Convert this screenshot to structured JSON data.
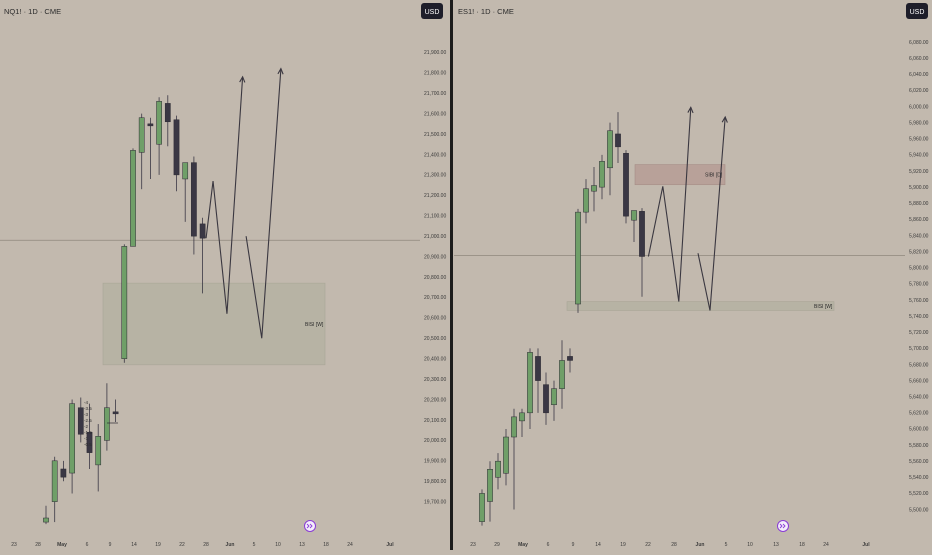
{
  "panels": [
    {
      "id": "nq",
      "title": "NQ1! · 1D · CME",
      "currency_label": "USD",
      "y_ticks": [
        "21,900.00",
        "21,800.00",
        "21,700.00",
        "21,600.00",
        "21,500.00",
        "21,400.00",
        "21,300.00",
        "21,200.00",
        "21,100.00",
        "21,000.00",
        "20,900.00",
        "20,800.00",
        "20,700.00",
        "20,600.00",
        "20,500.00",
        "20,400.00",
        "20,300.00",
        "20,200.00",
        "20,100.00",
        "20,000.00",
        "19,900.00",
        "19,800.00",
        "19,700.00"
      ],
      "x_ticks": [
        "23",
        "28",
        "May",
        "6",
        "9",
        "14",
        "19",
        "22",
        "28",
        "Jun",
        "5",
        "10",
        "13",
        "18",
        "24",
        "Jul"
      ],
      "zone_label": "BISI [W]",
      "inner_labels": [
        "-4",
        "-3.5",
        "-3",
        "-2.5",
        "-2",
        "-1.5",
        "-1",
        "-0.5"
      ]
    },
    {
      "id": "es",
      "title": "ES1! · 1D · CME",
      "currency_label": "USD",
      "y_ticks": [
        "6,080.00",
        "6,060.00",
        "6,040.00",
        "6,020.00",
        "6,000.00",
        "5,980.00",
        "5,960.00",
        "5,940.00",
        "5,920.00",
        "5,900.00",
        "5,880.00",
        "5,860.00",
        "5,840.00",
        "5,820.00",
        "5,800.00",
        "5,780.00",
        "5,760.00",
        "5,740.00",
        "5,720.00",
        "5,700.00",
        "5,680.00",
        "5,660.00",
        "5,640.00",
        "5,620.00",
        "5,600.00",
        "5,580.00",
        "5,560.00",
        "5,540.00",
        "5,520.00",
        "5,500.00"
      ],
      "x_ticks": [
        "23",
        "29",
        "May",
        "6",
        "9",
        "14",
        "19",
        "22",
        "28",
        "Jun",
        "5",
        "10",
        "13",
        "18",
        "24",
        "Jul"
      ],
      "zone_labels": [
        "SIBI [D]",
        "BISI [W]"
      ]
    }
  ],
  "colors": {
    "background": "#c2b9ae",
    "bull": "#6f9f68",
    "bear": "#3a3744",
    "wick": "#3a3744",
    "bisi_zone": "#b6b2a3",
    "sibi_zone": "#b79f98",
    "divider": "#1c1c1c",
    "badge": "#1e1e2a",
    "event_icon": "#8a3cd6"
  },
  "icons": [
    "event-icon"
  ],
  "chart_data": [
    {
      "type": "candlestick",
      "title": "NQ1! · 1D · CME",
      "currency": "USD",
      "ylim": [
        19620,
        21980
      ],
      "candles": [
        {
          "o": 19600,
          "h": 19680,
          "l": 19590,
          "c": 19620
        },
        {
          "o": 19700,
          "h": 19920,
          "l": 19600,
          "c": 19900
        },
        {
          "o": 19860,
          "h": 19900,
          "l": 19800,
          "c": 19820
        },
        {
          "o": 19840,
          "h": 20200,
          "l": 19740,
          "c": 20180
        },
        {
          "o": 20160,
          "h": 20210,
          "l": 19990,
          "c": 20030
        },
        {
          "o": 20040,
          "h": 20180,
          "l": 19860,
          "c": 19940
        },
        {
          "o": 19880,
          "h": 20080,
          "l": 19750,
          "c": 20020
        },
        {
          "o": 20000,
          "h": 20280,
          "l": 19950,
          "c": 20160
        },
        {
          "o": 20140,
          "h": 20200,
          "l": 20090,
          "c": 20130
        },
        {
          "o": 20400,
          "h": 20960,
          "l": 20380,
          "c": 20950
        },
        {
          "o": 20950,
          "h": 21430,
          "l": 20950,
          "c": 21420
        },
        {
          "o": 21410,
          "h": 21600,
          "l": 21230,
          "c": 21580
        },
        {
          "o": 21550,
          "h": 21580,
          "l": 21280,
          "c": 21540
        },
        {
          "o": 21450,
          "h": 21680,
          "l": 21300,
          "c": 21660
        },
        {
          "o": 21650,
          "h": 21690,
          "l": 21440,
          "c": 21560
        },
        {
          "o": 21570,
          "h": 21590,
          "l": 21220,
          "c": 21300
        },
        {
          "o": 21280,
          "h": 21350,
          "l": 21070,
          "c": 21360
        },
        {
          "o": 21360,
          "h": 21390,
          "l": 20910,
          "c": 21000
        },
        {
          "o": 21060,
          "h": 21090,
          "l": 20720,
          "c": 20990
        }
      ],
      "zones": [
        {
          "label": "BISI [W]",
          "from": 20370,
          "to": 20770
        }
      ],
      "current_price_line": 20980,
      "projection_paths": [
        [
          {
            "i": 18.4,
            "p": 20990
          },
          {
            "i": 19.2,
            "p": 21270
          },
          {
            "i": 20.8,
            "p": 20620
          },
          {
            "i": 22.6,
            "p": 21780
          }
        ],
        [
          {
            "i": 23.0,
            "p": 21000
          },
          {
            "i": 24.8,
            "p": 20500
          },
          {
            "i": 27.0,
            "p": 21820
          }
        ]
      ]
    },
    {
      "type": "candlestick",
      "title": "ES1! · 1D · CME",
      "currency": "USD",
      "ylim": [
        5492,
        6090
      ],
      "candles": [
        {
          "o": 5485,
          "h": 5525,
          "l": 5480,
          "c": 5520
        },
        {
          "o": 5510,
          "h": 5560,
          "l": 5485,
          "c": 5550
        },
        {
          "o": 5540,
          "h": 5570,
          "l": 5525,
          "c": 5560
        },
        {
          "o": 5545,
          "h": 5600,
          "l": 5530,
          "c": 5590
        },
        {
          "o": 5590,
          "h": 5625,
          "l": 5500,
          "c": 5615
        },
        {
          "o": 5610,
          "h": 5625,
          "l": 5590,
          "c": 5620
        },
        {
          "o": 5620,
          "h": 5700,
          "l": 5600,
          "c": 5695
        },
        {
          "o": 5690,
          "h": 5700,
          "l": 5620,
          "c": 5660
        },
        {
          "o": 5655,
          "h": 5670,
          "l": 5605,
          "c": 5620
        },
        {
          "o": 5630,
          "h": 5660,
          "l": 5610,
          "c": 5650
        },
        {
          "o": 5650,
          "h": 5710,
          "l": 5625,
          "c": 5685
        },
        {
          "o": 5690,
          "h": 5700,
          "l": 5670,
          "c": 5685
        },
        {
          "o": 5755,
          "h": 5873,
          "l": 5744,
          "c": 5869
        },
        {
          "o": 5869,
          "h": 5910,
          "l": 5855,
          "c": 5898
        },
        {
          "o": 5895,
          "h": 5925,
          "l": 5870,
          "c": 5902
        },
        {
          "o": 5900,
          "h": 5940,
          "l": 5885,
          "c": 5932
        },
        {
          "o": 5924,
          "h": 5980,
          "l": 5890,
          "c": 5970
        },
        {
          "o": 5966,
          "h": 5993,
          "l": 5930,
          "c": 5950
        },
        {
          "o": 5942,
          "h": 5946,
          "l": 5855,
          "c": 5864
        },
        {
          "o": 5859,
          "h": 5869,
          "l": 5832,
          "c": 5871
        },
        {
          "o": 5870,
          "h": 5874,
          "l": 5764,
          "c": 5814
        }
      ],
      "zones": [
        {
          "label": "SIBI [D]",
          "from": 5903,
          "to": 5928
        },
        {
          "label": "BISI [W]",
          "from": 5747,
          "to": 5758
        }
      ],
      "current_price_line": 5815,
      "projection_paths": [
        [
          {
            "i": 20.8,
            "p": 5814
          },
          {
            "i": 22.6,
            "p": 5901
          },
          {
            "i": 24.6,
            "p": 5758
          },
          {
            "i": 26.1,
            "p": 5999
          }
        ],
        [
          {
            "i": 27.0,
            "p": 5818
          },
          {
            "i": 28.5,
            "p": 5747
          },
          {
            "i": 30.4,
            "p": 5987
          }
        ]
      ]
    }
  ]
}
